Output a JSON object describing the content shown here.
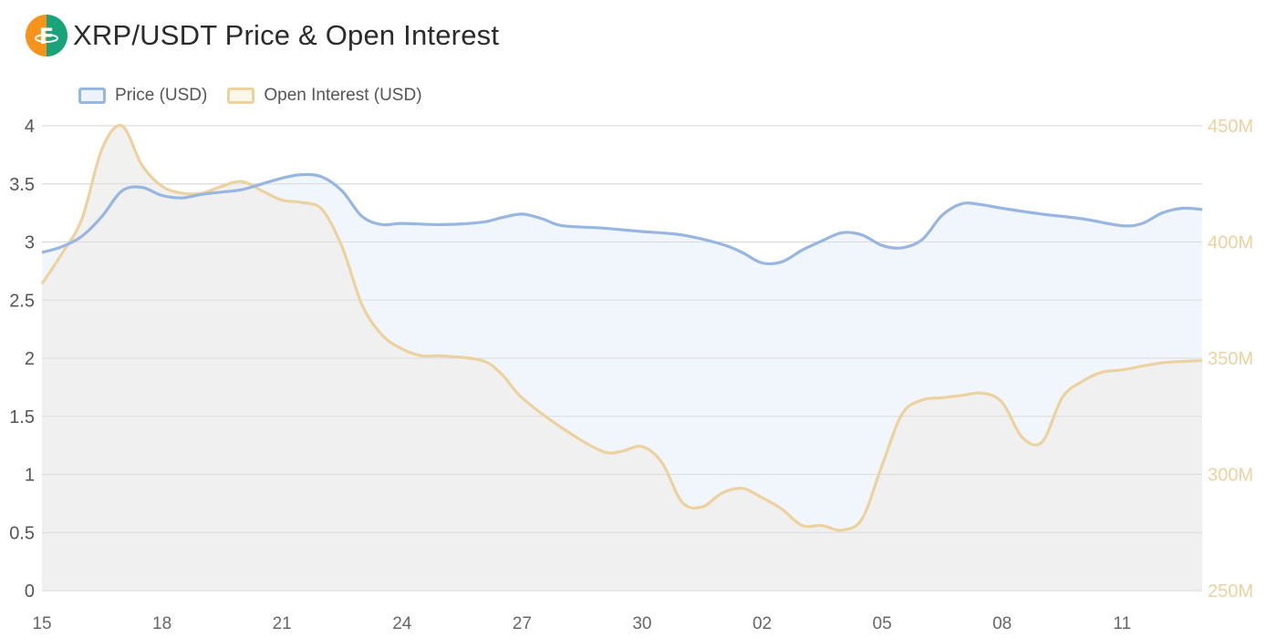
{
  "header": {
    "title": "XRP/USDT Price & Open Interest"
  },
  "chart_data": {
    "type": "line",
    "title": "XRP/USDT Price & Open Interest",
    "grid": true,
    "legend_placement": "top-left",
    "colors": {
      "price_line": "#98b6e2",
      "price_fill": "#eef3fb",
      "oi_line": "#ecd29f",
      "oi_fill": "#f0f0ee",
      "grid": "#dddddd",
      "left_ticks": "#555555",
      "right_ticks": "#ecd29f"
    },
    "x_tick_labels": [
      "15",
      "18",
      "21",
      "24",
      "27",
      "30",
      "02",
      "05",
      "08",
      "11"
    ],
    "x_index_range": [
      0,
      29
    ],
    "y_left": {
      "ticks": [
        "0",
        "0.5",
        "1",
        "1.5",
        "2",
        "2.5",
        "3",
        "3.5",
        "4"
      ],
      "min": 0,
      "max": 4
    },
    "y_right": {
      "ticks": [
        "250M",
        "300M",
        "350M",
        "400M",
        "450M"
      ],
      "min": 250,
      "max": 450,
      "unit": "M"
    },
    "series": [
      {
        "name": "Price (USD)",
        "axis": "left",
        "points": [
          [
            0,
            2.91
          ],
          [
            0.5,
            2.96
          ],
          [
            1,
            3.05
          ],
          [
            1.5,
            3.22
          ],
          [
            2,
            3.44
          ],
          [
            2.5,
            3.47
          ],
          [
            3,
            3.4
          ],
          [
            3.5,
            3.38
          ],
          [
            4,
            3.41
          ],
          [
            4.5,
            3.43
          ],
          [
            5,
            3.45
          ],
          [
            5.5,
            3.5
          ],
          [
            6,
            3.55
          ],
          [
            6.5,
            3.58
          ],
          [
            7,
            3.56
          ],
          [
            7.5,
            3.44
          ],
          [
            8,
            3.22
          ],
          [
            8.5,
            3.15
          ],
          [
            9,
            3.16
          ],
          [
            10,
            3.15
          ],
          [
            11,
            3.17
          ],
          [
            11.5,
            3.21
          ],
          [
            12,
            3.24
          ],
          [
            12.5,
            3.2
          ],
          [
            13,
            3.14
          ],
          [
            14,
            3.12
          ],
          [
            15,
            3.09
          ],
          [
            16,
            3.06
          ],
          [
            17,
            2.98
          ],
          [
            17.5,
            2.91
          ],
          [
            18,
            2.82
          ],
          [
            18.5,
            2.83
          ],
          [
            19,
            2.93
          ],
          [
            19.5,
            3.01
          ],
          [
            20,
            3.08
          ],
          [
            20.5,
            3.06
          ],
          [
            21,
            2.97
          ],
          [
            21.5,
            2.95
          ],
          [
            22,
            3.02
          ],
          [
            22.5,
            3.23
          ],
          [
            23,
            3.33
          ],
          [
            23.5,
            3.32
          ],
          [
            24,
            3.29
          ],
          [
            25,
            3.24
          ],
          [
            26,
            3.2
          ],
          [
            27,
            3.14
          ],
          [
            27.5,
            3.16
          ],
          [
            28,
            3.25
          ],
          [
            28.5,
            3.29
          ],
          [
            29,
            3.28
          ]
        ]
      },
      {
        "name": "Open Interest (USD)",
        "axis": "right",
        "points": [
          [
            0,
            382
          ],
          [
            0.5,
            395
          ],
          [
            1,
            410
          ],
          [
            1.5,
            440
          ],
          [
            2,
            450
          ],
          [
            2.5,
            433
          ],
          [
            3,
            424
          ],
          [
            3.5,
            421
          ],
          [
            4,
            421
          ],
          [
            4.5,
            424
          ],
          [
            5,
            426
          ],
          [
            5.5,
            422
          ],
          [
            6,
            418
          ],
          [
            6.5,
            417
          ],
          [
            7,
            414
          ],
          [
            7.5,
            398
          ],
          [
            8,
            373
          ],
          [
            8.5,
            360
          ],
          [
            9,
            354
          ],
          [
            9.5,
            351
          ],
          [
            10,
            351
          ],
          [
            11,
            349
          ],
          [
            11.5,
            343
          ],
          [
            12,
            333
          ],
          [
            13,
            320
          ],
          [
            14,
            310
          ],
          [
            14.5,
            310
          ],
          [
            15,
            312
          ],
          [
            15.5,
            305
          ],
          [
            16,
            288
          ],
          [
            16.5,
            286
          ],
          [
            17,
            292
          ],
          [
            17.5,
            294
          ],
          [
            18,
            290
          ],
          [
            18.5,
            285
          ],
          [
            19,
            278
          ],
          [
            19.5,
            278
          ],
          [
            20,
            276
          ],
          [
            20.5,
            281
          ],
          [
            21,
            304
          ],
          [
            21.5,
            326
          ],
          [
            22,
            332
          ],
          [
            22.5,
            333
          ],
          [
            23,
            334
          ],
          [
            23.5,
            335
          ],
          [
            24,
            331
          ],
          [
            24.5,
            316
          ],
          [
            25,
            314
          ],
          [
            25.5,
            333
          ],
          [
            26,
            340
          ],
          [
            26.5,
            344
          ],
          [
            27,
            345
          ],
          [
            28,
            348
          ],
          [
            29,
            349
          ]
        ]
      }
    ]
  }
}
